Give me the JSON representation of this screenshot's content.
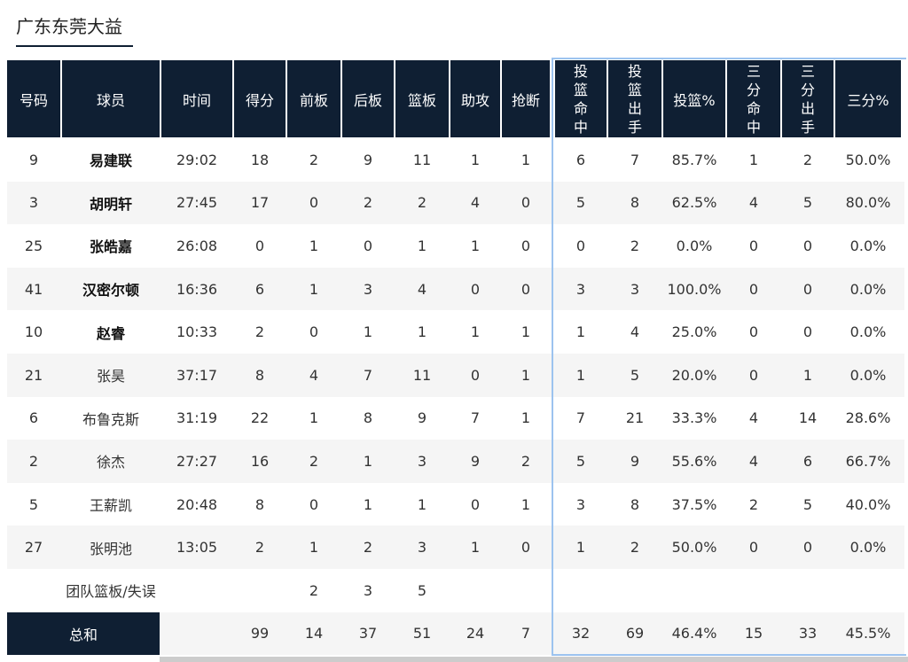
{
  "header": {
    "title": "广东东莞大益"
  },
  "table": {
    "columns": [
      "号码",
      "球员",
      "时间",
      "得分",
      "前板",
      "后板",
      "篮板",
      "助攻",
      "抢断",
      "投篮命中",
      "投篮出手",
      "投篮%",
      "三分命中",
      "三分出手",
      "三分%"
    ],
    "rows": [
      [
        "9",
        "易建联",
        "29:02",
        "18",
        "2",
        "9",
        "11",
        "1",
        "1",
        "6",
        "7",
        "85.7%",
        "1",
        "2",
        "50.0%"
      ],
      [
        "3",
        "胡明轩",
        "27:45",
        "17",
        "0",
        "2",
        "2",
        "4",
        "0",
        "5",
        "8",
        "62.5%",
        "4",
        "5",
        "80.0%"
      ],
      [
        "25",
        "张皓嘉",
        "26:08",
        "0",
        "1",
        "0",
        "1",
        "1",
        "0",
        "0",
        "2",
        "0.0%",
        "0",
        "0",
        "0.0%"
      ],
      [
        "41",
        "汉密尔顿",
        "16:36",
        "6",
        "1",
        "3",
        "4",
        "0",
        "0",
        "3",
        "3",
        "100.0%",
        "0",
        "0",
        "0.0%"
      ],
      [
        "10",
        "赵睿",
        "10:33",
        "2",
        "0",
        "1",
        "1",
        "1",
        "1",
        "1",
        "4",
        "25.0%",
        "0",
        "0",
        "0.0%"
      ],
      [
        "21",
        "张昊",
        "37:17",
        "8",
        "4",
        "7",
        "11",
        "0",
        "1",
        "1",
        "5",
        "20.0%",
        "0",
        "1",
        "0.0%"
      ],
      [
        "6",
        "布鲁克斯",
        "31:19",
        "22",
        "1",
        "8",
        "9",
        "7",
        "1",
        "7",
        "21",
        "33.3%",
        "4",
        "14",
        "28.6%"
      ],
      [
        "2",
        "徐杰",
        "27:27",
        "16",
        "2",
        "1",
        "3",
        "9",
        "2",
        "5",
        "9",
        "55.6%",
        "4",
        "6",
        "66.7%"
      ],
      [
        "5",
        "王薪凯",
        "20:48",
        "8",
        "0",
        "1",
        "1",
        "0",
        "1",
        "3",
        "8",
        "37.5%",
        "2",
        "5",
        "40.0%"
      ],
      [
        "27",
        "张明池",
        "13:05",
        "2",
        "1",
        "2",
        "3",
        "1",
        "0",
        "1",
        "2",
        "50.0%",
        "0",
        "0",
        "0.0%"
      ]
    ],
    "team_row": {
      "label": "团队篮板/失误",
      "offensive": "2",
      "defensive": "3",
      "total": "5"
    },
    "total_row": {
      "label": "总和",
      "values": [
        "99",
        "14",
        "37",
        "51",
        "24",
        "7",
        "32",
        "69",
        "46.4%",
        "15",
        "33",
        "45.5%"
      ]
    }
  }
}
